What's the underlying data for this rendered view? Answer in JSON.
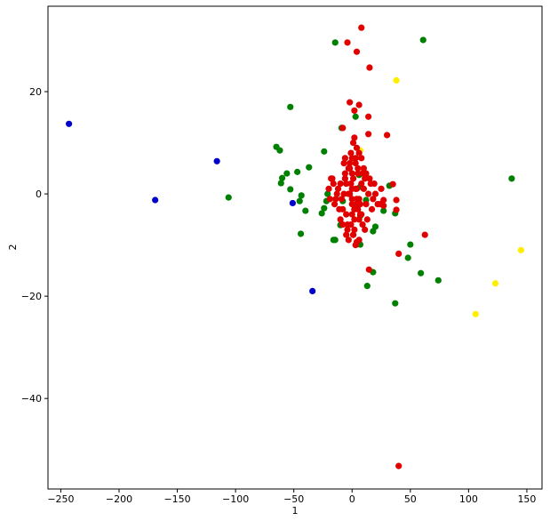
{
  "chart_data": {
    "type": "scatter",
    "xlabel": "1",
    "ylabel": "2",
    "xlim": [
      -261,
      163
    ],
    "ylim": [
      -57.7,
      36.7
    ],
    "xticks": [
      {
        "value": -250,
        "label": "−250"
      },
      {
        "value": -200,
        "label": "−200"
      },
      {
        "value": -150,
        "label": "−150"
      },
      {
        "value": -100,
        "label": "−100"
      },
      {
        "value": -50,
        "label": "−50"
      },
      0,
      50,
      100,
      150
    ],
    "yticks": [
      {
        "value": -40,
        "label": "−40"
      },
      {
        "value": -20,
        "label": "−20"
      },
      0,
      20
    ],
    "grid": false,
    "series": [
      {
        "color": "#008000",
        "x": [
          -14.5,
          61,
          -53,
          3,
          -9,
          -65,
          -62,
          -106,
          -56,
          -60,
          -61,
          -37,
          -47,
          -53,
          -43.5,
          -45,
          -40,
          -44,
          -24,
          -24,
          -26,
          -21,
          -16,
          -14.5,
          -10,
          7,
          7,
          20,
          18,
          18,
          13,
          37,
          37,
          27,
          32,
          50,
          48,
          59,
          74,
          137,
          6,
          12,
          7,
          -8,
          -22
        ],
        "y": [
          29.6,
          30.1,
          17,
          15.1,
          12.9,
          9.2,
          8.5,
          -0.7,
          4,
          3.1,
          2.1,
          5.2,
          4.3,
          0.9,
          -0.3,
          -1.4,
          -3.3,
          -7.8,
          8.3,
          -2.8,
          -3.8,
          0,
          -9,
          -9,
          -6.1,
          -4.3,
          -9.9,
          -6.4,
          -7.3,
          -15.3,
          -18,
          -21.4,
          -3.8,
          -3.3,
          1.6,
          -9.9,
          -12.5,
          -15.5,
          -16.9,
          3,
          3.7,
          -1.2,
          1.4,
          -1.4,
          -1.4
        ]
      },
      {
        "color": "#0000cc",
        "x": [
          -243,
          -169,
          -116,
          -51,
          -34
        ],
        "y": [
          13.7,
          -1.2,
          6.4,
          -1.8,
          -19
        ]
      },
      {
        "color": "#ffee00",
        "x": [
          38,
          145,
          123,
          106,
          7
        ],
        "y": [
          22.2,
          -11,
          -17.5,
          -23.5,
          8.5
        ]
      },
      {
        "color": "#e00000",
        "x": [
          8,
          -4,
          4,
          15,
          -2,
          6,
          14,
          2,
          30,
          14,
          -8,
          40,
          40,
          62.5,
          14.5,
          4,
          35,
          38,
          38,
          27,
          27,
          -3,
          -1,
          0,
          1,
          2,
          3,
          4,
          5,
          -5,
          -7,
          -2,
          6,
          8,
          -4,
          0,
          2,
          -6,
          10,
          12,
          -8,
          -10,
          3,
          1,
          -1,
          4,
          7,
          9,
          -3,
          -9,
          11,
          14,
          -12,
          -15,
          -18,
          5,
          0,
          2,
          -2,
          6,
          -6,
          8,
          -8,
          13,
          16,
          18,
          -11,
          -13,
          1,
          3,
          -4,
          4,
          -5,
          7,
          9,
          -7,
          0,
          15,
          20,
          22,
          -14,
          -16,
          -20,
          10,
          6,
          2,
          -1,
          3,
          5,
          -3,
          1,
          8,
          12,
          -10,
          -2,
          0,
          4,
          17,
          19,
          -17,
          24,
          25,
          -19,
          11,
          -5,
          2,
          6,
          0,
          -6
        ],
        "y": [
          32.5,
          29.6,
          27.8,
          24.7,
          17.9,
          17.4,
          15.1,
          16.3,
          11.5,
          11.7,
          12.9,
          -53.2,
          -11.7,
          -8,
          -14.8,
          -9.4,
          1.9,
          -1.2,
          -3.1,
          -1.2,
          -2.3,
          0,
          2,
          -1,
          3,
          -3,
          1,
          -2,
          4,
          -4,
          0,
          5,
          -5,
          2,
          -6,
          7,
          -7,
          3,
          1,
          -2,
          -3,
          2,
          6,
          -8,
          8,
          9,
          -4,
          4,
          -9,
          -1,
          3,
          0,
          1,
          -2,
          3,
          5,
          -4,
          -3,
          6,
          -1,
          4,
          7,
          -6,
          -5,
          2,
          -1,
          -3,
          0,
          10,
          -10,
          -7,
          1,
          2,
          -2,
          -6,
          6,
          4,
          3,
          0,
          -2,
          -1,
          2,
          1,
          5,
          -9,
          -5,
          -6,
          7,
          -3,
          5,
          -8,
          -4,
          4,
          -5,
          0,
          1,
          -1,
          -3,
          2,
          3,
          -2,
          1,
          -1,
          -7,
          -8,
          11,
          8,
          -2,
          7
        ]
      }
    ]
  }
}
